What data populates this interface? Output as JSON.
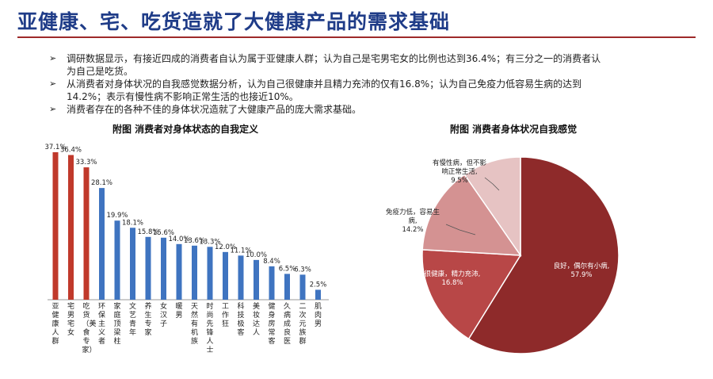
{
  "header": {
    "title": "亚健康、宅、吃货造就了大健康产品的需求基础"
  },
  "bullets": [
    "调研数据显示，有接近四成的消费者自认为属于亚健康人群；认为自己是宅男宅女的比例也达到36.4%；有三分之一的消费者认为自己是吃货。",
    "从消费者对身体状况的自我感觉数据分析，认为自己很健康并且精力充沛的仅有16.8%；认为自己免疫力低容易生病的达到14.2%；表示有慢性病不影响正常生活的也接近10%。",
    "消费者存在的各种不佳的身体状况造就了大健康产品的庞大需求基础。"
  ],
  "chart_data": [
    {
      "type": "bar",
      "title": "附图 消费者对身体状态的自我定义",
      "categories": [
        "亚健康人群",
        "宅男宅女",
        "吃货（美食专家）",
        "环保主义者",
        "家庭顶梁柱",
        "文艺青年",
        "养生专家",
        "女汉子",
        "暖男",
        "天然有机族",
        "时尚先锋人士",
        "工作狂",
        "科技极客",
        "美妆达人",
        "健身房常客",
        "久病成良医",
        "二次元族群",
        "肌肉男"
      ],
      "values": [
        37.1,
        36.4,
        33.3,
        28.1,
        19.9,
        18.1,
        15.8,
        15.6,
        14.0,
        13.6,
        13.3,
        12.0,
        11.1,
        10.0,
        8.4,
        6.5,
        6.3,
        2.5
      ],
      "value_labels": [
        "37.1%",
        "36.4%",
        "33.3%",
        "28.1%",
        "19.9%",
        "18.1%",
        "15.8%",
        "15.6%",
        "14.0%",
        "13.6%",
        "13.3%",
        "12.0%",
        "11.1%",
        "10.0%",
        "8.4%",
        "6.5%",
        "6.3%",
        "2.5%"
      ],
      "highlight_count": 3,
      "colors": {
        "highlight": "#c0392b",
        "normal": "#3f74c0"
      },
      "ylim": [
        0,
        40
      ]
    },
    {
      "type": "pie",
      "title": "附图 消费者身体状况自我感觉",
      "slices": [
        {
          "label": "良好，偶尔有小病",
          "value": 57.9,
          "text": "良好，偶尔有小病, 57.9%",
          "color": "#8e2a2a"
        },
        {
          "label": "很健康，精力充沛",
          "value": 16.8,
          "text": "很健康，精力充沛, 16.8%",
          "color": "#b84747"
        },
        {
          "label": "免疫力低，容易生病",
          "value": 14.2,
          "text": "免疫力低，容易生病, 14.2%",
          "color": "#d49292"
        },
        {
          "label": "有慢性病，但不影响正常生活",
          "value": 9.5,
          "text": "有慢性病，但不影响正常生活, 9.5%",
          "color": "#e6c3c3"
        }
      ]
    }
  ]
}
